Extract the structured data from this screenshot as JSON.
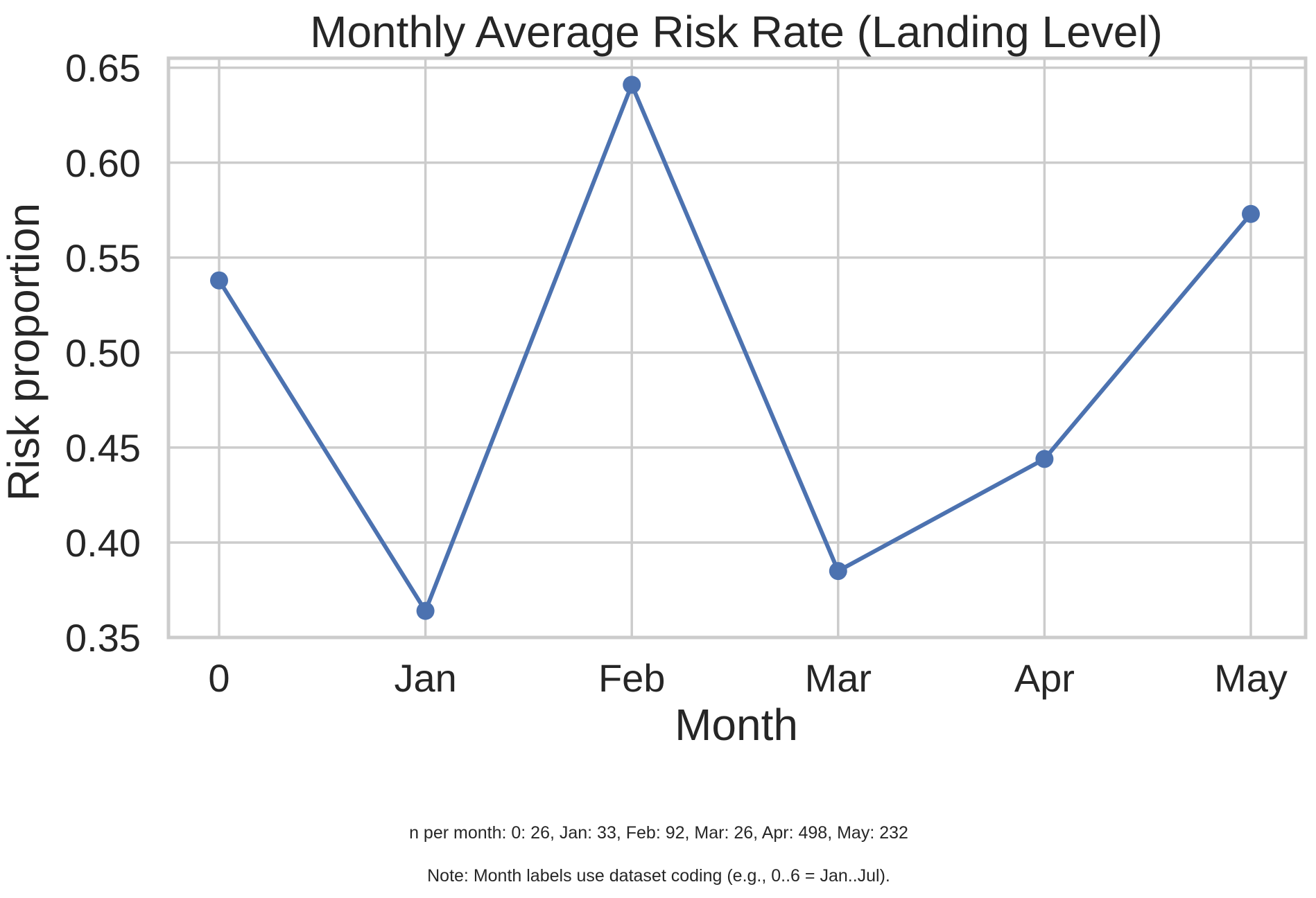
{
  "chart_data": {
    "type": "line",
    "title": "Monthly Average Risk Rate (Landing Level)",
    "xlabel": "Month",
    "ylabel": "Risk proportion",
    "categories": [
      "0",
      "Jan",
      "Feb",
      "Mar",
      "Apr",
      "May"
    ],
    "series": [
      {
        "name": "",
        "values": [
          0.538,
          0.364,
          0.641,
          0.385,
          0.444,
          0.573
        ],
        "color": "#4c72b0"
      }
    ],
    "ylim": [
      0.35,
      0.655
    ],
    "yticks": [
      "0.35",
      "0.40",
      "0.45",
      "0.50",
      "0.55",
      "0.60",
      "0.65"
    ],
    "grid": true,
    "legend": "none",
    "notes": [
      "n per month: 0: 26, Jan: 33, Feb: 92, Mar: 26, Apr: 498, May: 232",
      "Note: Month labels use dataset coding (e.g., 0..6 = Jan..Jul)."
    ]
  }
}
